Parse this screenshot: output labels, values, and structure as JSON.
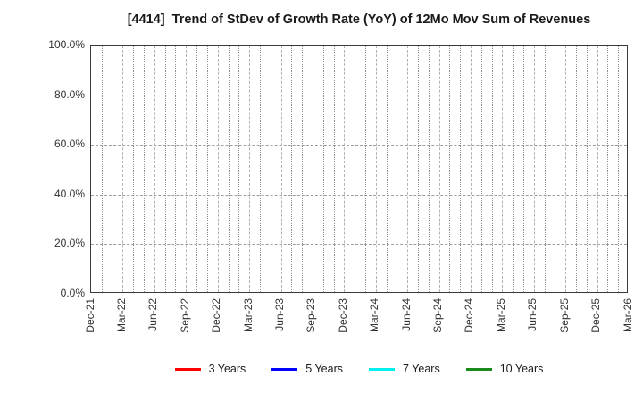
{
  "chart_data": {
    "type": "line",
    "title": "[4414]  Trend of StDev of Growth Rate (YoY) of 12Mo Mov Sum of Revenues",
    "xlabel": "",
    "ylabel": "",
    "ylim": [
      0,
      100
    ],
    "y_tick_labels": [
      "0.0%",
      "20.0%",
      "40.0%",
      "60.0%",
      "80.0%",
      "100.0%"
    ],
    "x_tick_labels": [
      "Dec-21",
      "Mar-22",
      "Jun-22",
      "Sep-22",
      "Dec-22",
      "Mar-23",
      "Jun-23",
      "Sep-23",
      "Dec-23",
      "Mar-24",
      "Jun-24",
      "Sep-24",
      "Dec-24",
      "Mar-25",
      "Jun-25",
      "Sep-25",
      "Dec-25",
      "Mar-26"
    ],
    "x_months_per_major_tick": 3,
    "x_minor_gridlines_per_month": 1,
    "grid": true,
    "legend_position": "bottom",
    "series": [
      {
        "name": "3 Years",
        "color": "#ff0000",
        "values": []
      },
      {
        "name": "5 Years",
        "color": "#0000ff",
        "values": []
      },
      {
        "name": "7 Years",
        "color": "#00f0f0",
        "values": []
      },
      {
        "name": "10 Years",
        "color": "#1a8a1a",
        "values": []
      }
    ]
  }
}
